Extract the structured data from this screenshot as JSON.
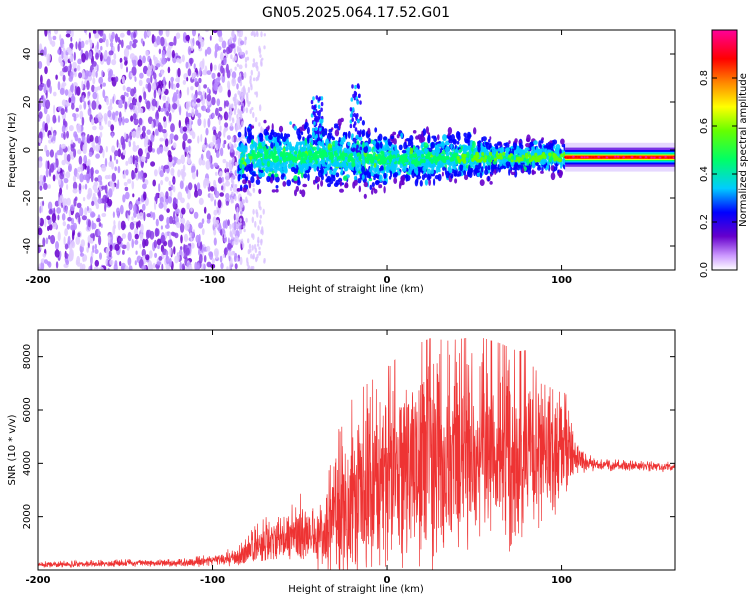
{
  "title": "GN05.2025.064.17.52.G01",
  "chart_data": [
    {
      "type": "heatmap",
      "name": "spectrogram",
      "title": "GN05.2025.064.17.52.G01",
      "xlabel": "Height of straight line (km)",
      "ylabel": "Frequency (Hz)",
      "xlim": [
        -200,
        165
      ],
      "ylim": [
        -50,
        50
      ],
      "xticks": [
        -200,
        -100,
        0,
        100
      ],
      "xtick_labels": [
        "-200",
        "-100",
        "0",
        "100"
      ],
      "yticks": [
        -40,
        -20,
        0,
        20,
        40
      ],
      "ytick_labels": [
        "-40",
        "-20",
        "0",
        "20",
        "40"
      ],
      "colorbar": {
        "label": "Normalized spectral amplitude",
        "range": [
          0,
          1
        ],
        "ticks": [
          0,
          0.2,
          0.4,
          0.6,
          0.8
        ],
        "tick_labels": [
          "0.0",
          "0.2",
          "0.4",
          "0.6",
          "0.8"
        ]
      },
      "description_regions": {
        "noise_x_range": [
          -200,
          -85
        ],
        "signal_center_freq_track": [
          [
            -80,
            -2
          ],
          [
            -60,
            -3
          ],
          [
            -40,
            -2
          ],
          [
            -20,
            -3
          ],
          [
            0,
            -4
          ],
          [
            50,
            -3
          ],
          [
            100,
            -3
          ],
          [
            110,
            -3
          ],
          [
            165,
            -3
          ]
        ],
        "tone_start_x": 102,
        "tone_freq": -3
      },
      "colors": [
        "#ffffff",
        "#6600cc",
        "#0000ff",
        "#00ccff",
        "#00ff66",
        "#ffff00",
        "#ff6600",
        "#ff0000",
        "#ff00aa"
      ]
    },
    {
      "type": "line",
      "name": "snr",
      "xlabel": "Height of straight line (km)",
      "ylabel": "SNR (10 * v/v)",
      "xlim": [
        -200,
        165
      ],
      "ylim": [
        0,
        9000
      ],
      "xticks": [
        -200,
        -100,
        0,
        100
      ],
      "xtick_labels": [
        "-200",
        "-100",
        "0",
        "100"
      ],
      "yticks": [
        2000,
        4000,
        6000,
        8000
      ],
      "ytick_labels": [
        "2000",
        "4000",
        "6000",
        "8000"
      ],
      "color": "#ee3333",
      "envelope": {
        "x": [
          -200,
          -150,
          -120,
          -100,
          -85,
          -75,
          -65,
          -55,
          -48,
          -40,
          -33,
          -25,
          -15,
          -5,
          5,
          15,
          25,
          35,
          45,
          55,
          65,
          75,
          85,
          95,
          103,
          110,
          120,
          140,
          165
        ],
        "mean": [
          200,
          250,
          250,
          350,
          500,
          900,
          1100,
          1200,
          1400,
          1000,
          1600,
          2500,
          3000,
          3300,
          3600,
          3900,
          4200,
          4300,
          4500,
          4700,
          4400,
          4300,
          4600,
          4800,
          4600,
          4100,
          3950,
          3900,
          3850
        ],
        "amp": [
          120,
          150,
          150,
          250,
          400,
          800,
          1100,
          1200,
          1600,
          1000,
          2200,
          3500,
          3800,
          4000,
          4300,
          4500,
          4500,
          4300,
          4200,
          4000,
          4100,
          3900,
          3700,
          3400,
          2200,
          500,
          250,
          200,
          200
        ]
      }
    }
  ]
}
